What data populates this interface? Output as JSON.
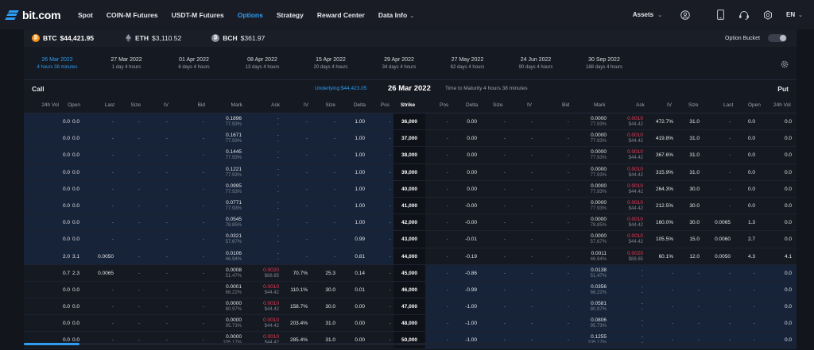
{
  "brand": {
    "name": "bit.com",
    "accent": "#2e9ef5",
    "ask_color": "#ea3d5a"
  },
  "nav": {
    "items": [
      {
        "label": "Spot",
        "active": false
      },
      {
        "label": "COIN-M Futures",
        "active": false
      },
      {
        "label": "USDT-M Futures",
        "active": false
      },
      {
        "label": "Options",
        "active": true
      },
      {
        "label": "Strategy",
        "active": false
      },
      {
        "label": "Reward Center",
        "active": false
      },
      {
        "label": "Data Info",
        "active": false
      }
    ],
    "assets_label": "Assets",
    "language": "EN",
    "icons": [
      "user-icon",
      "mobile-icon",
      "headset-icon",
      "settings-icon"
    ]
  },
  "coins": [
    {
      "symbol": "BTC",
      "price": "$44,421.95",
      "active": true,
      "icon": "btc-icon"
    },
    {
      "symbol": "ETH",
      "price": "$3,110.52",
      "active": false,
      "icon": "eth-icon"
    },
    {
      "symbol": "BCH",
      "price": "$361.97",
      "active": false,
      "icon": "bch-icon"
    }
  ],
  "option_bucket_label": "Option Bucket",
  "expiries": [
    {
      "date": "26 Mar 2022",
      "time": "4 hours 38 minutes",
      "active": true
    },
    {
      "date": "27 Mar 2022",
      "time": "1 day 4 hours",
      "active": false
    },
    {
      "date": "01 Apr 2022",
      "time": "6 days 4 hours",
      "active": false
    },
    {
      "date": "08 Apr 2022",
      "time": "13 days 4 hours",
      "active": false
    },
    {
      "date": "15 Apr 2022",
      "time": "20 days 4 hours",
      "active": false
    },
    {
      "date": "29 Apr 2022",
      "time": "34 days 4 hours",
      "active": false
    },
    {
      "date": "27 May 2022",
      "time": "62 days 4 hours",
      "active": false
    },
    {
      "date": "24 Jun 2022",
      "time": "90 days 4 hours",
      "active": false
    },
    {
      "date": "30 Sep 2022",
      "time": "188 days 4 hours",
      "active": false
    }
  ],
  "header": {
    "call_label": "Call",
    "put_label": "Put",
    "underlying": "Underlying:$44,423.05",
    "expiry_title": "26 Mar 2022",
    "time_to_maturity": "Time to Maturity 4 hours 38 minutes"
  },
  "columns": {
    "call": [
      "24h Vol",
      "Open",
      "Last",
      "Size",
      "IV",
      "Bid",
      "Mark",
      "Ask",
      "IV",
      "Size",
      "Delta",
      "Pos"
    ],
    "strike": "Strike",
    "put": [
      "Pos",
      "Delta",
      "Size",
      "IV",
      "Bid",
      "Mark",
      "Ask",
      "IV",
      "Size",
      "Last",
      "Open",
      "24h Vol"
    ]
  },
  "rows": [
    {
      "strike": "36,000",
      "call_itm": true,
      "call": {
        "vol": "0.0",
        "open": "0.0",
        "last": "-",
        "bsize": "-",
        "biv": "-",
        "bid": "-",
        "mark": "0.1896",
        "mark_iv": "77.93%",
        "ask": "-",
        "ask_usd": "-",
        "aiv": "-",
        "asize": "-",
        "delta": "1.00",
        "pos": "-"
      },
      "put": {
        "pos": "-",
        "delta": "0.00",
        "bsize": "-",
        "biv": "-",
        "bid": "-",
        "mark": "0.0000",
        "mark_iv": "77.93%",
        "ask": "0.0010",
        "ask_usd": "$44.42",
        "aiv": "472.7%",
        "asize": "31.0",
        "last": "-",
        "open": "0.0",
        "vol": "0.0"
      }
    },
    {
      "strike": "37,000",
      "call_itm": true,
      "call": {
        "vol": "0.0",
        "open": "0.0",
        "last": "-",
        "bsize": "-",
        "biv": "-",
        "bid": "-",
        "mark": "0.1671",
        "mark_iv": "77.93%",
        "ask": "-",
        "ask_usd": "-",
        "aiv": "-",
        "asize": "-",
        "delta": "1.00",
        "pos": "-"
      },
      "put": {
        "pos": "-",
        "delta": "0.00",
        "bsize": "-",
        "biv": "-",
        "bid": "-",
        "mark": "0.0000",
        "mark_iv": "77.93%",
        "ask": "0.0010",
        "ask_usd": "$44.42",
        "aiv": "419.8%",
        "asize": "31.0",
        "last": "-",
        "open": "0.0",
        "vol": "0.0"
      }
    },
    {
      "strike": "38,000",
      "call_itm": true,
      "call": {
        "vol": "0.0",
        "open": "0.0",
        "last": "-",
        "bsize": "-",
        "biv": "-",
        "bid": "-",
        "mark": "0.1445",
        "mark_iv": "77.93%",
        "ask": "-",
        "ask_usd": "-",
        "aiv": "-",
        "asize": "-",
        "delta": "1.00",
        "pos": "-"
      },
      "put": {
        "pos": "-",
        "delta": "0.00",
        "bsize": "-",
        "biv": "-",
        "bid": "-",
        "mark": "0.0000",
        "mark_iv": "77.93%",
        "ask": "0.0010",
        "ask_usd": "$44.42",
        "aiv": "367.6%",
        "asize": "31.0",
        "last": "-",
        "open": "0.0",
        "vol": "0.0"
      }
    },
    {
      "strike": "39,000",
      "call_itm": true,
      "call": {
        "vol": "0.0",
        "open": "0.0",
        "last": "-",
        "bsize": "-",
        "biv": "-",
        "bid": "-",
        "mark": "0.1221",
        "mark_iv": "77.93%",
        "ask": "-",
        "ask_usd": "-",
        "aiv": "-",
        "asize": "-",
        "delta": "1.00",
        "pos": "-"
      },
      "put": {
        "pos": "-",
        "delta": "0.00",
        "bsize": "-",
        "biv": "-",
        "bid": "-",
        "mark": "0.0000",
        "mark_iv": "77.93%",
        "ask": "0.0010",
        "ask_usd": "$44.42",
        "aiv": "315.9%",
        "asize": "31.0",
        "last": "-",
        "open": "0.0",
        "vol": "0.0"
      }
    },
    {
      "strike": "40,000",
      "call_itm": true,
      "call": {
        "vol": "0.0",
        "open": "0.0",
        "last": "-",
        "bsize": "-",
        "biv": "-",
        "bid": "-",
        "mark": "0.0995",
        "mark_iv": "77.93%",
        "ask": "-",
        "ask_usd": "-",
        "aiv": "-",
        "asize": "-",
        "delta": "1.00",
        "pos": "-"
      },
      "put": {
        "pos": "-",
        "delta": "0.00",
        "bsize": "-",
        "biv": "-",
        "bid": "-",
        "mark": "0.0000",
        "mark_iv": "77.93%",
        "ask": "0.0010",
        "ask_usd": "$44.42",
        "aiv": "264.3%",
        "asize": "30.0",
        "last": "-",
        "open": "0.0",
        "vol": "0.0"
      }
    },
    {
      "strike": "41,000",
      "call_itm": true,
      "call": {
        "vol": "0.0",
        "open": "0.0",
        "last": "-",
        "bsize": "-",
        "biv": "-",
        "bid": "-",
        "mark": "0.0771",
        "mark_iv": "77.93%",
        "ask": "-",
        "ask_usd": "-",
        "aiv": "-",
        "asize": "-",
        "delta": "1.00",
        "pos": "-"
      },
      "put": {
        "pos": "-",
        "delta": "-0.00",
        "bsize": "-",
        "biv": "-",
        "bid": "-",
        "mark": "0.0000",
        "mark_iv": "77.93%",
        "ask": "0.0010",
        "ask_usd": "$44.42",
        "aiv": "212.5%",
        "asize": "30.0",
        "last": "-",
        "open": "0.0",
        "vol": "0.0"
      }
    },
    {
      "strike": "42,000",
      "call_itm": true,
      "call": {
        "vol": "0.0",
        "open": "0.0",
        "last": "-",
        "bsize": "-",
        "biv": "-",
        "bid": "-",
        "mark": "0.0545",
        "mark_iv": "78.85%",
        "ask": "-",
        "ask_usd": "-",
        "aiv": "-",
        "asize": "-",
        "delta": "1.00",
        "pos": "-"
      },
      "put": {
        "pos": "-",
        "delta": "-0.00",
        "bsize": "-",
        "biv": "-",
        "bid": "-",
        "mark": "0.0000",
        "mark_iv": "78.85%",
        "ask": "0.0010",
        "ask_usd": "$44.42",
        "aiv": "160.0%",
        "asize": "30.0",
        "last": "0.0065",
        "open": "1.3",
        "vol": "0.0"
      }
    },
    {
      "strike": "43,000",
      "call_itm": true,
      "call": {
        "vol": "0.0",
        "open": "0.0",
        "last": "-",
        "bsize": "-",
        "biv": "-",
        "bid": "-",
        "mark": "0.0321",
        "mark_iv": "57.67%",
        "ask": "-",
        "ask_usd": "-",
        "aiv": "-",
        "asize": "-",
        "delta": "0.99",
        "pos": "-"
      },
      "put": {
        "pos": "-",
        "delta": "-0.01",
        "bsize": "-",
        "biv": "-",
        "bid": "-",
        "mark": "0.0000",
        "mark_iv": "57.67%",
        "ask": "0.0010",
        "ask_usd": "$44.42",
        "aiv": "105.5%",
        "asize": "15.0",
        "last": "0.0060",
        "open": "2.7",
        "vol": "0.0"
      }
    },
    {
      "strike": "44,000",
      "call_itm": true,
      "call": {
        "vol": "2.0",
        "open": "3.1",
        "last": "0.0050",
        "bsize": "-",
        "biv": "-",
        "bid": "-",
        "mark": "0.0106",
        "mark_iv": "46.94%",
        "ask": "-",
        "ask_usd": "-",
        "aiv": "-",
        "asize": "-",
        "delta": "0.81",
        "pos": "-"
      },
      "put": {
        "pos": "-",
        "delta": "-0.19",
        "bsize": "-",
        "biv": "-",
        "bid": "-",
        "mark": "0.0011",
        "mark_iv": "46.94%",
        "ask": "0.0020",
        "ask_usd": "$88.85",
        "aiv": "60.1%",
        "asize": "12.0",
        "last": "0.0050",
        "open": "4.3",
        "vol": "4.1"
      }
    },
    {
      "strike": "45,000",
      "call_itm": false,
      "call": {
        "vol": "0.7",
        "open": "2.3",
        "last": "0.0065",
        "bsize": "-",
        "biv": "-",
        "bid": "-",
        "mark": "0.0008",
        "mark_iv": "51.47%",
        "ask": "0.0020",
        "ask_usd": "$88.85",
        "aiv": "70.7%",
        "asize": "25.3",
        "delta": "0.14",
        "pos": "-"
      },
      "put": {
        "pos": "-",
        "delta": "-0.86",
        "bsize": "-",
        "biv": "-",
        "bid": "-",
        "mark": "0.0138",
        "mark_iv": "51.47%",
        "ask": "-",
        "ask_usd": "-",
        "aiv": "-",
        "asize": "-",
        "last": "-",
        "open": "-",
        "vol": "0.0"
      }
    },
    {
      "strike": "46,000",
      "call_itm": false,
      "call": {
        "vol": "0.0",
        "open": "0.0",
        "last": "-",
        "bsize": "-",
        "biv": "-",
        "bid": "-",
        "mark": "0.0001",
        "mark_iv": "66.22%",
        "ask": "0.0010",
        "ask_usd": "$44.42",
        "aiv": "110.1%",
        "asize": "30.0",
        "delta": "0.01",
        "pos": "-"
      },
      "put": {
        "pos": "-",
        "delta": "-0.99",
        "bsize": "-",
        "biv": "-",
        "bid": "-",
        "mark": "0.0356",
        "mark_iv": "66.22%",
        "ask": "-",
        "ask_usd": "-",
        "aiv": "-",
        "asize": "-",
        "last": "-",
        "open": "-",
        "vol": "0.0"
      }
    },
    {
      "strike": "47,000",
      "call_itm": false,
      "call": {
        "vol": "0.0",
        "open": "0.0",
        "last": "-",
        "bsize": "-",
        "biv": "-",
        "bid": "-",
        "mark": "0.0000",
        "mark_iv": "80.97%",
        "ask": "0.0010",
        "ask_usd": "$44.42",
        "aiv": "158.7%",
        "asize": "30.0",
        "delta": "0.00",
        "pos": "-"
      },
      "put": {
        "pos": "-",
        "delta": "-1.00",
        "bsize": "-",
        "biv": "-",
        "bid": "-",
        "mark": "0.0581",
        "mark_iv": "80.97%",
        "ask": "-",
        "ask_usd": "-",
        "aiv": "-",
        "asize": "-",
        "last": "-",
        "open": "-",
        "vol": "0.0"
      }
    },
    {
      "strike": "48,000",
      "call_itm": false,
      "call": {
        "vol": "0.0",
        "open": "0.0",
        "last": "-",
        "bsize": "-",
        "biv": "-",
        "bid": "-",
        "mark": "0.0000",
        "mark_iv": "95.73%",
        "ask": "0.0010",
        "ask_usd": "$44.42",
        "aiv": "203.4%",
        "asize": "31.0",
        "delta": "0.00",
        "pos": "-"
      },
      "put": {
        "pos": "-",
        "delta": "-1.00",
        "bsize": "-",
        "biv": "-",
        "bid": "-",
        "mark": "0.0806",
        "mark_iv": "95.73%",
        "ask": "-",
        "ask_usd": "-",
        "aiv": "-",
        "asize": "-",
        "last": "-",
        "open": "-",
        "vol": "0.0"
      }
    },
    {
      "strike": "50,000",
      "call_itm": false,
      "call": {
        "vol": "0.0",
        "open": "0.0",
        "last": "-",
        "bsize": "-",
        "biv": "-",
        "bid": "-",
        "mark": "0.0000",
        "mark_iv": "105.17%",
        "ask": "0.0010",
        "ask_usd": "$44.42",
        "aiv": "285.4%",
        "asize": "31.0",
        "delta": "0.00",
        "pos": "-"
      },
      "put": {
        "pos": "-",
        "delta": "-1.00",
        "bsize": "-",
        "biv": "-",
        "bid": "-",
        "mark": "0.1255",
        "mark_iv": "105.17%",
        "ask": "-",
        "ask_usd": "-",
        "aiv": "-",
        "asize": "-",
        "last": "-",
        "open": "-",
        "vol": "0.0"
      }
    }
  ]
}
